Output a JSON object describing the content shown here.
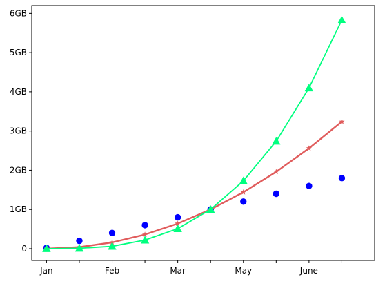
{
  "chart_data": {
    "type": "line",
    "title": "",
    "xlabel": "",
    "ylabel": "",
    "grid": false,
    "x": [
      0,
      1,
      2,
      3,
      4,
      5,
      6,
      7,
      8,
      9
    ],
    "xlim": [
      -0.45,
      10
    ],
    "ylim": [
      -0.3,
      6.2
    ],
    "x_ticks": [
      0,
      1,
      2,
      3,
      4,
      5,
      6,
      7,
      8,
      9
    ],
    "x_tick_labels": [
      "Jan",
      "",
      "Feb",
      "",
      "Mar",
      "",
      "May",
      "",
      "June",
      ""
    ],
    "y_ticks": [
      0,
      1,
      2,
      3,
      4,
      5,
      6
    ],
    "y_tick_labels": [
      "0",
      "1GB",
      "2GB",
      "3GB",
      "4GB",
      "5GB",
      "6GB"
    ],
    "series": [
      {
        "type": "scatter",
        "marker": "circle",
        "color": "#0000ff",
        "values": [
          0.02,
          0.2,
          0.4,
          0.6,
          0.8,
          1.0,
          1.2,
          1.4,
          1.6,
          1.8
        ]
      },
      {
        "type": "line",
        "marker": "star",
        "color": "#e05c5c",
        "values": [
          0.0,
          0.04,
          0.16,
          0.36,
          0.64,
          1.0,
          1.44,
          1.96,
          2.56,
          3.24
        ]
      },
      {
        "type": "line",
        "marker": "triangle",
        "color": "#00ff7f",
        "values": [
          0.0,
          0.01,
          0.06,
          0.22,
          0.51,
          1.0,
          1.73,
          2.74,
          4.1,
          5.83
        ]
      }
    ]
  }
}
